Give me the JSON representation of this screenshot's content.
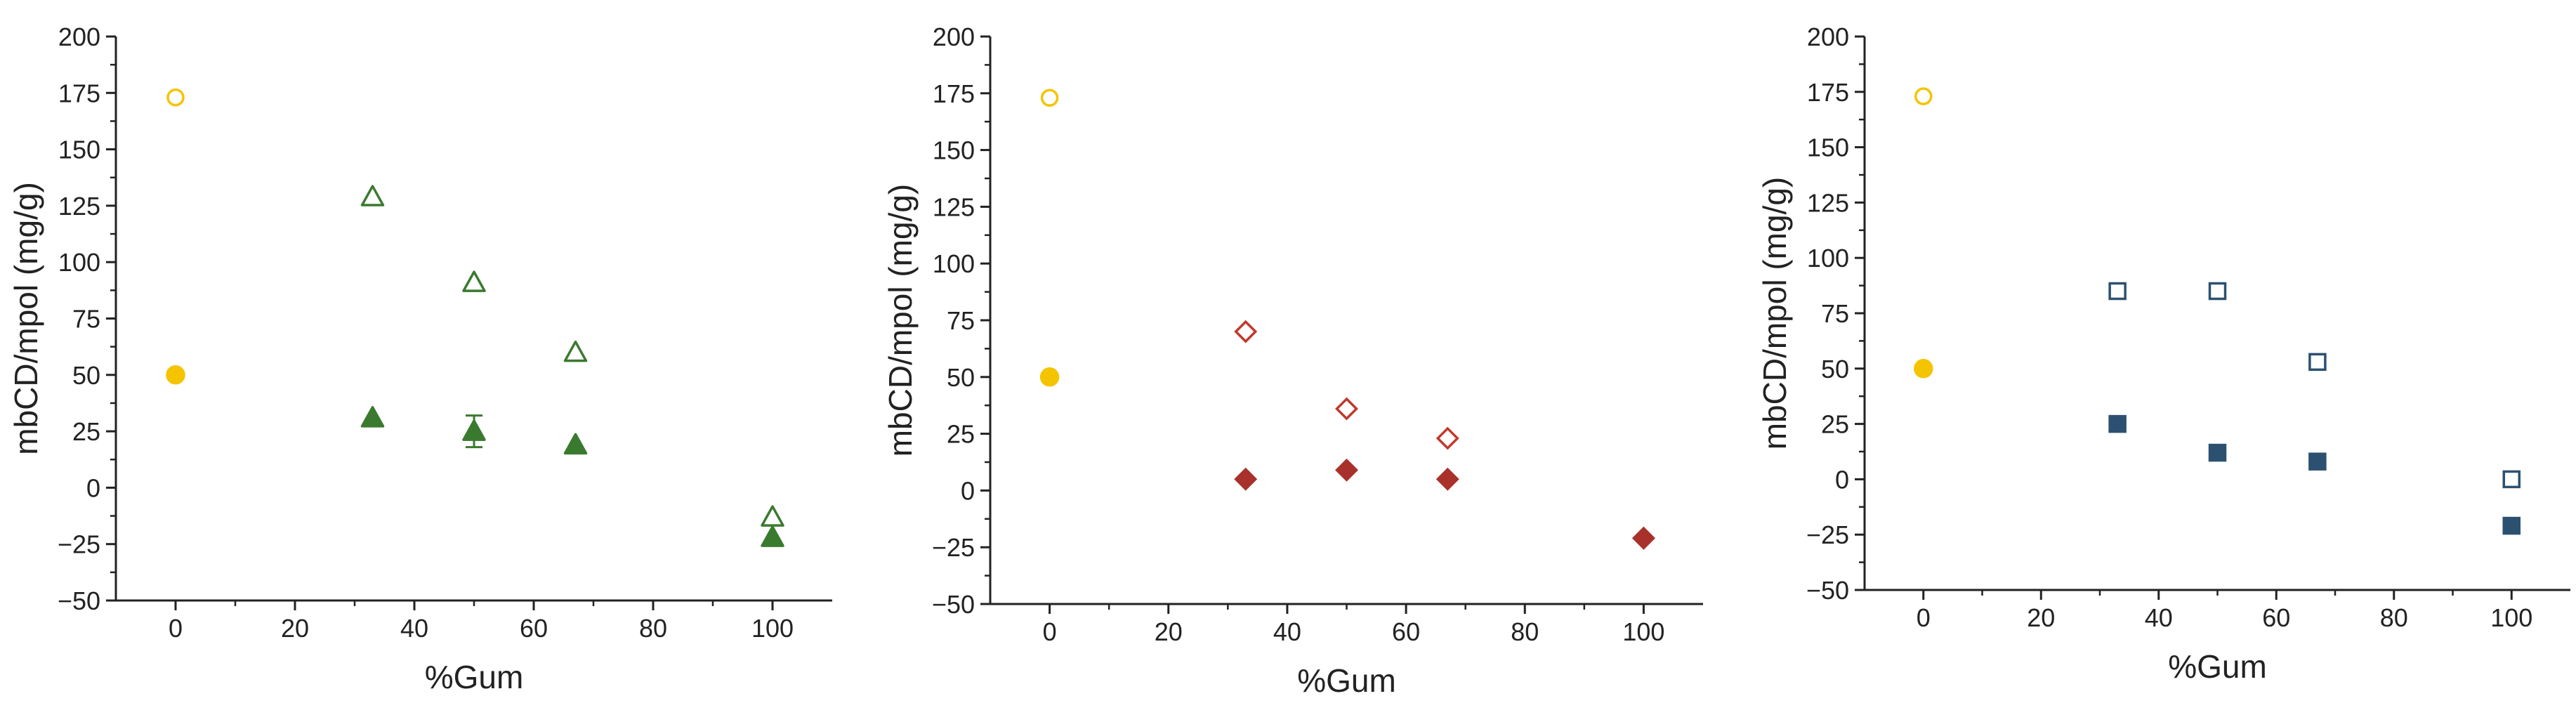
{
  "chart_data": [
    {
      "type": "scatter",
      "xlabel": "%Gum",
      "ylabel": "mbCD/mpol (mg/g)",
      "xlim": [
        -10,
        110
      ],
      "ylim": [
        -50,
        200
      ],
      "xticks": [
        0,
        20,
        40,
        60,
        80,
        100
      ],
      "yticks": [
        -50,
        -25,
        0,
        25,
        50,
        75,
        100,
        125,
        150,
        175,
        200
      ],
      "grid": false,
      "series": [
        {
          "marker": "circle-open",
          "color": "#f5c400",
          "x": [
            0
          ],
          "y": [
            173
          ]
        },
        {
          "marker": "circle-filled",
          "color": "#f5c400",
          "x": [
            0
          ],
          "y": [
            50
          ]
        },
        {
          "marker": "triangle-open",
          "color": "#3a7a2e",
          "x": [
            33,
            50,
            67,
            100
          ],
          "y": [
            129,
            91,
            60,
            -13
          ]
        },
        {
          "marker": "triangle-filled",
          "color": "#3a7a2e",
          "x": [
            33,
            50,
            67,
            100
          ],
          "y": [
            31,
            25,
            19,
            -22
          ],
          "error": [
            0,
            7,
            0,
            0
          ]
        }
      ]
    },
    {
      "type": "scatter",
      "xlabel": "%Gum",
      "ylabel": "mbCD/mpol (mg/g)",
      "xlim": [
        -10,
        110
      ],
      "ylim": [
        -50,
        200
      ],
      "xticks": [
        0,
        20,
        40,
        60,
        80,
        100
      ],
      "yticks": [
        -50,
        -25,
        0,
        25,
        50,
        75,
        100,
        125,
        150,
        175,
        200
      ],
      "grid": false,
      "series": [
        {
          "marker": "circle-open",
          "color": "#f5c400",
          "x": [
            0
          ],
          "y": [
            173
          ]
        },
        {
          "marker": "circle-filled",
          "color": "#f5c400",
          "x": [
            0
          ],
          "y": [
            50
          ]
        },
        {
          "marker": "diamond-open",
          "color": "#c0392b",
          "x": [
            33,
            50,
            67,
            100
          ],
          "y": [
            70,
            36,
            23,
            -21
          ]
        },
        {
          "marker": "diamond-filled",
          "color": "#a8322b",
          "x": [
            33,
            50,
            67,
            100
          ],
          "y": [
            5,
            9,
            5,
            -21
          ]
        }
      ]
    },
    {
      "type": "scatter",
      "xlabel": "%Gum",
      "ylabel": "mbCD/mpol (mg/g)",
      "xlim": [
        -10,
        110
      ],
      "ylim": [
        -50,
        200
      ],
      "xticks": [
        0,
        20,
        40,
        60,
        80,
        100
      ],
      "yticks": [
        -50,
        -25,
        0,
        25,
        50,
        75,
        100,
        125,
        150,
        175,
        200
      ],
      "grid": false,
      "series": [
        {
          "marker": "circle-open",
          "color": "#f5c400",
          "x": [
            0
          ],
          "y": [
            173
          ]
        },
        {
          "marker": "circle-filled",
          "color": "#f5c400",
          "x": [
            0
          ],
          "y": [
            50
          ]
        },
        {
          "marker": "square-open",
          "color": "#2c5170",
          "x": [
            33,
            50,
            67,
            100
          ],
          "y": [
            85,
            85,
            53,
            0
          ]
        },
        {
          "marker": "square-filled",
          "color": "#2c5170",
          "x": [
            33,
            50,
            67,
            100
          ],
          "y": [
            25,
            12,
            8,
            -21
          ]
        }
      ]
    }
  ]
}
